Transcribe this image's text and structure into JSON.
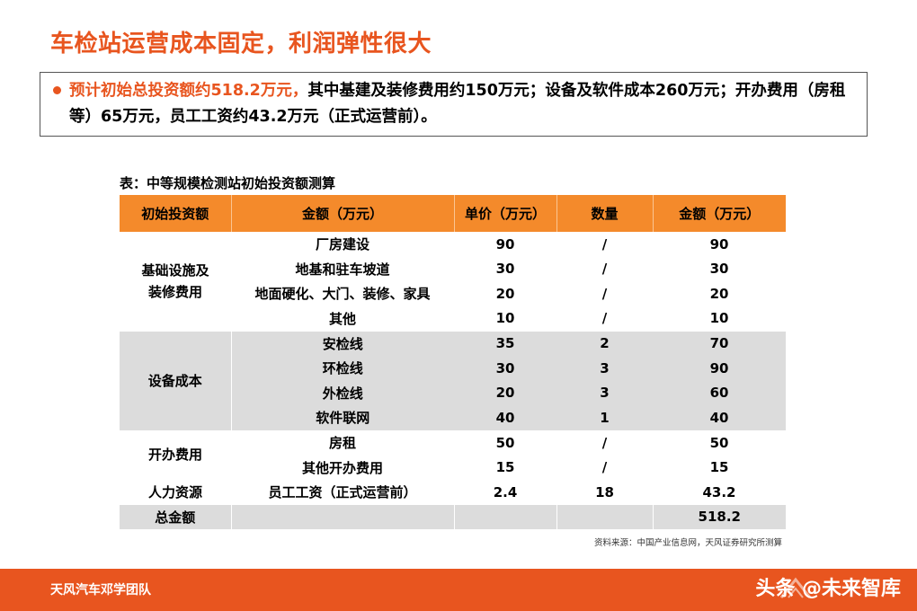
{
  "title": "车检站运营成本固定，利润弹性很大",
  "summary": {
    "highlight": "预计初始总投资额约518.2万元，",
    "rest": "其中基建及装修费用约150万元；设备及软件成本260万元；开办费用（房租等）65万元，员工工资约43.2万元（正式运营前）。"
  },
  "table_caption": "表：中等规模检测站初始投资额测算",
  "table": {
    "headers": [
      "初始投资额",
      "金额（万元）",
      "单价（万元）",
      "数量",
      "金额（万元）"
    ],
    "groups": [
      {
        "category": "基础设施及装修费用",
        "category_lines": [
          "基础设施及",
          "装修费用"
        ],
        "rows": [
          {
            "item": "厂房建设",
            "price": "90",
            "qty": "/",
            "amount": "90"
          },
          {
            "item": "地基和驻车坡道",
            "price": "30",
            "qty": "/",
            "amount": "30"
          },
          {
            "item": "地面硬化、大门、装修、家具",
            "price": "20",
            "qty": "/",
            "amount": "20"
          },
          {
            "item": "其他",
            "price": "10",
            "qty": "/",
            "amount": "10"
          }
        ]
      },
      {
        "category": "设备成本",
        "category_lines": [
          "设备成本"
        ],
        "rows": [
          {
            "item": "安检线",
            "price": "35",
            "qty": "2",
            "amount": "70"
          },
          {
            "item": "环检线",
            "price": "30",
            "qty": "3",
            "amount": "90"
          },
          {
            "item": "外检线",
            "price": "20",
            "qty": "3",
            "amount": "60"
          },
          {
            "item": "软件联网",
            "price": "40",
            "qty": "1",
            "amount": "40"
          }
        ]
      },
      {
        "category": "开办费用",
        "category_lines": [
          "开办费用"
        ],
        "rows": [
          {
            "item": "房租",
            "price": "50",
            "qty": "/",
            "amount": "50"
          },
          {
            "item": "其他开办费用",
            "price": "15",
            "qty": "/",
            "amount": "15"
          }
        ]
      },
      {
        "category": "人力资源",
        "category_lines": [
          "人力资源"
        ],
        "rows": [
          {
            "item": "员工工资（正式运营前）",
            "price": "2.4",
            "qty": "18",
            "amount": "43.2"
          }
        ]
      }
    ],
    "total_label": "总金额",
    "total_amount": "518.2"
  },
  "source": "资料来源：中国产业信息网，天风证券研究所测算",
  "footer": {
    "team": "天风汽车邓学团队",
    "brand": "头条 @未来智库"
  },
  "colors": {
    "accent": "#e8551f",
    "header_bg": "#f48a2b",
    "grey_band": "#dcdcdc"
  }
}
